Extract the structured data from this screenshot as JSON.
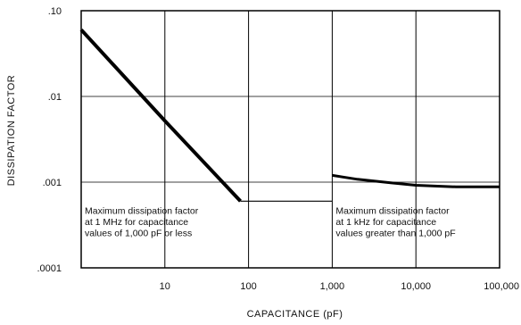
{
  "chart_data": {
    "type": "line",
    "xlabel": "CAPACITANCE (pF)",
    "ylabel": "DISSIPATION FACTOR",
    "x_scale": "log",
    "y_scale": "log",
    "xlim": [
      1,
      100000
    ],
    "ylim": [
      0.0001,
      0.1
    ],
    "x_ticks": [
      {
        "value": 10,
        "label": "10"
      },
      {
        "value": 100,
        "label": "100"
      },
      {
        "value": 1000,
        "label": "1,000"
      },
      {
        "value": 10000,
        "label": "10,000"
      },
      {
        "value": 100000,
        "label": "100,000"
      }
    ],
    "y_ticks": [
      {
        "value": 0.1,
        "label": ".10"
      },
      {
        "value": 0.01,
        "label": ".01"
      },
      {
        "value": 0.001,
        "label": ".001"
      },
      {
        "value": 0.0001,
        "label": ".0001"
      }
    ],
    "grid": true,
    "series": [
      {
        "color": "#000000",
        "x": [
          1,
          10,
          80
        ],
        "y": [
          0.06,
          0.0052,
          0.0006
        ]
      },
      {
        "color": "#000000",
        "x": [
          1000,
          2000,
          5000,
          10000,
          30000,
          100000
        ],
        "y": [
          0.0012,
          0.00108,
          0.00098,
          0.00092,
          0.00088,
          0.00088
        ]
      }
    ],
    "annotations": [
      {
        "lines": [
          "Maximum dissipation factor",
          "at 1 MHz for capacitance",
          "values of 1,000 pF or less"
        ],
        "x": 1,
        "y": 0.0006
      },
      {
        "lines": [
          "Maximum dissipation factor",
          "at 1 kHz for capacitance",
          "values greater than 1,000 pF"
        ],
        "x": 1000,
        "y": 0.0006
      }
    ]
  }
}
